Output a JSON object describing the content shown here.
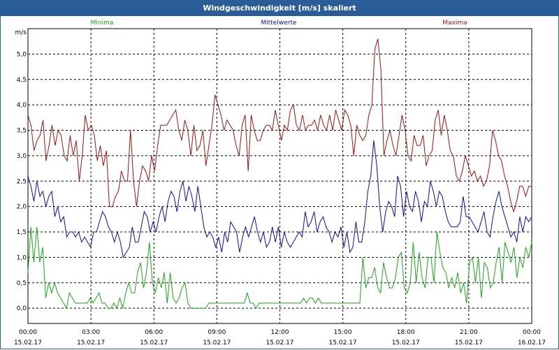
{
  "window": {
    "title": "Windgeschwindigkeit [m/s] skaliert"
  },
  "colors": {
    "minima": "#1aa51a",
    "mittelwerte": "#0b0bb4",
    "maxima": "#a01010",
    "title_bg": "#2a5d98"
  },
  "chart_data": {
    "type": "line",
    "title": "Windgeschwindigkeit [m/s] skaliert",
    "ylabel": "m/s",
    "ylim": [
      -0.3,
      5.5
    ],
    "yticks": [
      "0.0",
      "0.5",
      "1.0",
      "1.5",
      "2.0",
      "2.5",
      "3.0",
      "3.5",
      "4.0",
      "4.5",
      "5.0"
    ],
    "xlim_hours": [
      0,
      24
    ],
    "xticks": [
      {
        "time": "00:00",
        "date": "15.02.17"
      },
      {
        "time": "03:00",
        "date": "15.02.17"
      },
      {
        "time": "06:00",
        "date": "15.02.17"
      },
      {
        "time": "09:00",
        "date": "15.02.17"
      },
      {
        "time": "12:00",
        "date": "15.02.17"
      },
      {
        "time": "15:00",
        "date": "15.02.17"
      },
      {
        "time": "18:00",
        "date": "15.02.17"
      },
      {
        "time": "21:00",
        "date": "15.02.17"
      },
      {
        "time": "00:00",
        "date": "16.02.17"
      }
    ],
    "grid": true,
    "legend_position": "top",
    "series": [
      {
        "name": "Minima",
        "color": "#1aa51a",
        "values": [
          0.7,
          1.6,
          0.9,
          1.6,
          0.9,
          1.2,
          0.2,
          0.5,
          0.3,
          0.5,
          0.3,
          0.2,
          0.1,
          0,
          0.3,
          0.2,
          0.1,
          0.1,
          0.1,
          0.1,
          0.1,
          0.2,
          0.1,
          0.2,
          0.3,
          0.1,
          0.1,
          0,
          0,
          0.1,
          0,
          0.2,
          0,
          0.3,
          0.5,
          0.3,
          0.3,
          0.7,
          0.9,
          0.4,
          0.7,
          1.3,
          0.5,
          0.3,
          0.6,
          0.4,
          0.7,
          0.1,
          0.7,
          0.2,
          0.1,
          0.2,
          0.4,
          0.5,
          0.1,
          0,
          0,
          0,
          0,
          0,
          0,
          0.1,
          0.1,
          0.1,
          0.1,
          0.1,
          0.1,
          0.1,
          0.1,
          0.1,
          0.1,
          0.1,
          0.1,
          0.1,
          0.3,
          0.1,
          0.1,
          0,
          0.1,
          0.1,
          0.1,
          0.1,
          0.1,
          0.1,
          0.1,
          0.1,
          0.1,
          0.1,
          0.1,
          0.1,
          0.1,
          0.1,
          0.1,
          0.2,
          0.1,
          0.2,
          0.2,
          0.1,
          0.2,
          0.1,
          0.1,
          0.1,
          0.1,
          0.1,
          0.1,
          0.1,
          0.1,
          0.1,
          0.1,
          0.1,
          0.1,
          0.1,
          0.1,
          1.0,
          0.4,
          0.6,
          0.6,
          0.8,
          0.4,
          0.3,
          0.9,
          0.6,
          0.4,
          0.4,
          0.6,
          1.0,
          1.1,
          0.4,
          0.3,
          0.5,
          1.3,
          0.5,
          1.1,
          0.6,
          0.4,
          1.0,
          1.0,
          0.5,
          1.5,
          1.1,
          0.8,
          0.7,
          0.4,
          0.6,
          0.4,
          0.7,
          0.3,
          0.5,
          0.1,
          0.9,
          1.0,
          0.5,
          1.0,
          0.2,
          0.9,
          0.8,
          0.4,
          0.5,
          0.9,
          1.2,
          0.5,
          1.3,
          1.1,
          0.9,
          1.2,
          0.6,
          1.0,
          0.8,
          1.2,
          1.0,
          1.3
        ]
      },
      {
        "name": "Mittelwerte",
        "color": "#0b0bb4",
        "values": [
          2.6,
          2.4,
          2.1,
          2.5,
          2.2,
          2.3,
          2.0,
          2.2,
          2.3,
          1.8,
          2.0,
          1.7,
          1.8,
          1.4,
          1.5,
          1.5,
          1.4,
          1.5,
          1.3,
          1.4,
          1.3,
          1.2,
          1.5,
          1.5,
          1.7,
          1.9,
          1.8,
          1.6,
          1.5,
          1.3,
          1.5,
          1.3,
          1.0,
          1.1,
          1.2,
          1.6,
          1.3,
          1.3,
          1.6,
          1.9,
          1.8,
          1.5,
          1.7,
          1.5,
          1.8,
          2.0,
          1.7,
          2.1,
          2.3,
          2.2,
          1.9,
          2.3,
          2.5,
          2.1,
          2.4,
          2.2,
          1.9,
          2.4,
          2.0,
          1.6,
          1.4,
          1.5,
          1.4,
          1.2,
          1.4,
          1.1,
          1.5,
          1.3,
          1.7,
          1.6,
          1.5,
          1.1,
          1.4,
          1.6,
          1.4,
          1.6,
          1.8,
          1.5,
          1.3,
          1.5,
          1.2,
          1.3,
          1.6,
          1.3,
          1.6,
          1.2,
          1.5,
          1.3,
          1.2,
          1.3,
          1.4,
          1.5,
          1.4,
          1.9,
          1.6,
          1.7,
          1.9,
          1.5,
          1.7,
          1.8,
          1.6,
          1.5,
          1.3,
          1.5,
          1.4,
          1.6,
          1.2,
          1.5,
          1.1,
          1.2,
          1.7,
          1.3,
          1.3,
          1.7,
          2.3,
          2.6,
          3.3,
          2.8,
          2.0,
          1.5,
          1.9,
          2.1,
          2.0,
          1.8,
          2.6,
          2.4,
          1.8,
          2.3,
          2.0,
          1.9,
          2.3,
          2.1,
          1.7,
          2.1,
          2.0,
          2.5,
          2.3,
          2.0,
          2.3,
          2.2,
          1.9,
          1.7,
          1.6,
          1.6,
          1.6,
          1.7,
          2.2,
          1.8,
          1.8,
          1.7,
          1.6,
          1.5,
          1.7,
          1.9,
          1.5,
          1.4,
          1.8,
          2.1,
          2.3,
          2.0,
          1.8,
          1.6,
          1.4,
          1.5,
          1.3,
          1.8,
          1.5,
          1.8,
          1.7,
          1.8
        ]
      },
      {
        "name": "Maxima",
        "color": "#a01010",
        "values": [
          3.8,
          3.6,
          3.1,
          3.3,
          3.4,
          3.7,
          2.9,
          3.2,
          3.6,
          3.2,
          3.5,
          3.4,
          3.0,
          2.9,
          3.4,
          3.0,
          3.3,
          2.5,
          3.0,
          3.8,
          3.5,
          3.6,
          3.4,
          2.9,
          3.2,
          2.8,
          3.1,
          2.0,
          2.0,
          2.2,
          2.3,
          2.7,
          2.5,
          2.5,
          3.5,
          2.5,
          2.0,
          2.5,
          2.8,
          2.7,
          2.5,
          3.0,
          2.7,
          3.2,
          3.6,
          3.6,
          3.6,
          3.7,
          3.8,
          3.9,
          3.5,
          3.3,
          3.7,
          3.5,
          3.0,
          3.6,
          3.1,
          3.2,
          3.5,
          2.8,
          3.2,
          3.6,
          4.2,
          4.0,
          3.8,
          3.5,
          3.7,
          3.6,
          3.5,
          3.2,
          3.0,
          3.6,
          3.8,
          2.7,
          3.8,
          3.5,
          3.3,
          3.3,
          3.5,
          3.6,
          3.6,
          3.5,
          3.9,
          3.6,
          3.3,
          3.6,
          3.5,
          3.9,
          4.0,
          3.6,
          3.5,
          3.8,
          3.5,
          3.6,
          3.6,
          3.7,
          3.5,
          3.8,
          3.6,
          3.5,
          3.8,
          3.5,
          3.9,
          3.7,
          3.5,
          3.9,
          3.8,
          3.6,
          3.0,
          3.6,
          3.4,
          3.3,
          3.4,
          3.8,
          4.0,
          5.1,
          5.3,
          4.7,
          3.0,
          3.3,
          3.5,
          3.2,
          3.0,
          3.4,
          3.8,
          3.5,
          3.0,
          2.9,
          3.4,
          3.2,
          3.2,
          3.4,
          2.8,
          3.0,
          3.1,
          3.7,
          3.9,
          3.4,
          3.8,
          3.5,
          3.1,
          3.0,
          2.6,
          2.5,
          2.7,
          3.0,
          2.8,
          2.6,
          2.7,
          2.5,
          2.6,
          2.4,
          2.5,
          2.8,
          3.5,
          3.3,
          3.0,
          2.9,
          2.6,
          2.4,
          2.1,
          1.9,
          2.1,
          2.4,
          2.4,
          2.2,
          2.4,
          2.4
        ]
      }
    ]
  }
}
